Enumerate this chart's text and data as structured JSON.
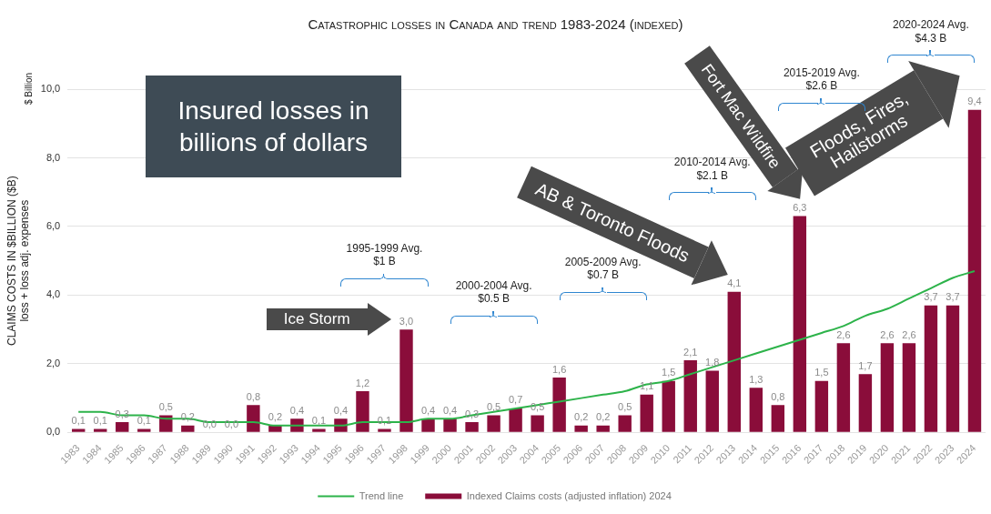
{
  "chart_data": {
    "type": "bar",
    "title": "Catastrophic losses in Canada and trend 1983-2024 (indexed)",
    "ylabel": "CLAIMS COSTS IN $BILLION ($B)\nloss + loss adj. expenses",
    "categories": [
      "1983",
      "1984",
      "1985",
      "1986",
      "1987",
      "1988",
      "1989",
      "1990",
      "1991",
      "1992",
      "1993",
      "1994",
      "1995",
      "1996",
      "1997",
      "1998",
      "1999",
      "2000",
      "2001",
      "2002",
      "2003",
      "2004",
      "2005",
      "2006",
      "2007",
      "2008",
      "2009",
      "2010",
      "2011",
      "2012",
      "2013",
      "2014",
      "2015",
      "2016",
      "2017",
      "2018",
      "2019",
      "2020",
      "2021",
      "2022",
      "2023",
      "2024"
    ],
    "series": [
      {
        "name": "Indexed Claims costs (adjusted inflation) 2024",
        "color": "#8a0d3a",
        "values": [
          0.1,
          0.1,
          0.3,
          0.1,
          0.5,
          0.2,
          0.0,
          0.0,
          0.8,
          0.2,
          0.4,
          0.1,
          0.4,
          1.2,
          0.1,
          3.0,
          0.4,
          0.4,
          0.3,
          0.5,
          0.7,
          0.5,
          1.6,
          0.2,
          0.2,
          0.5,
          1.1,
          1.5,
          2.1,
          1.8,
          4.1,
          1.3,
          0.8,
          6.3,
          1.5,
          2.6,
          1.7,
          2.6,
          2.6,
          3.7,
          3.7,
          9.4
        ],
        "value_labels": [
          "0,1",
          "0,1",
          "0,3",
          "0,1",
          "0,5",
          "0,2",
          "0,0",
          "0,0",
          "0,8",
          "0,2",
          "0,4",
          "0,1",
          "0,4",
          "1,2",
          "0,1",
          "3,0",
          "0,4",
          "0,4",
          "0,3",
          "0,5",
          "0,7",
          "0,5",
          "1,6",
          "0,2",
          "0,2",
          "0,5",
          "1,1",
          "1,5",
          "2,1",
          "1,8",
          "4,1",
          "1,3",
          "0,8",
          "6,3",
          "1,5",
          "2,6",
          "1,7",
          "2,6",
          "2,6",
          "3,7",
          "3,7",
          "9,4"
        ]
      },
      {
        "name": "Trend line",
        "type": "line",
        "color": "#2db34a",
        "values": [
          0.6,
          0.6,
          0.5,
          0.5,
          0.4,
          0.4,
          0.3,
          0.3,
          0.3,
          0.2,
          0.2,
          0.2,
          0.2,
          0.3,
          0.3,
          0.3,
          0.4,
          0.4,
          0.5,
          0.6,
          0.7,
          0.8,
          0.9,
          1.0,
          1.1,
          1.2,
          1.4,
          1.5,
          1.7,
          1.9,
          2.1,
          2.3,
          2.5,
          2.7,
          2.9,
          3.1,
          3.4,
          3.6,
          3.9,
          4.2,
          4.5,
          4.7
        ]
      }
    ],
    "ylim": [
      0,
      10
    ],
    "yticks": [
      {
        "value": 0,
        "label": "0,0"
      },
      {
        "value": 2,
        "label": "2,0"
      },
      {
        "value": 4,
        "label": "4,0"
      },
      {
        "value": 6,
        "label": "6,0"
      },
      {
        "value": 8,
        "label": "8,0"
      },
      {
        "value": 10,
        "label": "10,0"
      }
    ],
    "grid": "y",
    "legend": "bottom",
    "annotations": [
      "$ Billion",
      "Insured losses in billions of dollars",
      "Ice Storm",
      "AB & Toronto Floods",
      "Fort Mac Wildfire",
      "Floods, Fires, Hailstorms",
      "1995-1999  Avg.\n$1 B",
      "2000-2004  Avg.\n$0.5 B",
      "2005-2009  Avg.\n$0.7 B",
      "2010-2014  Avg.\n$2.1 B",
      "2015-2019  Avg.\n$2.6 B",
      "2020-2024  Avg.\n$4.3 B"
    ]
  }
}
